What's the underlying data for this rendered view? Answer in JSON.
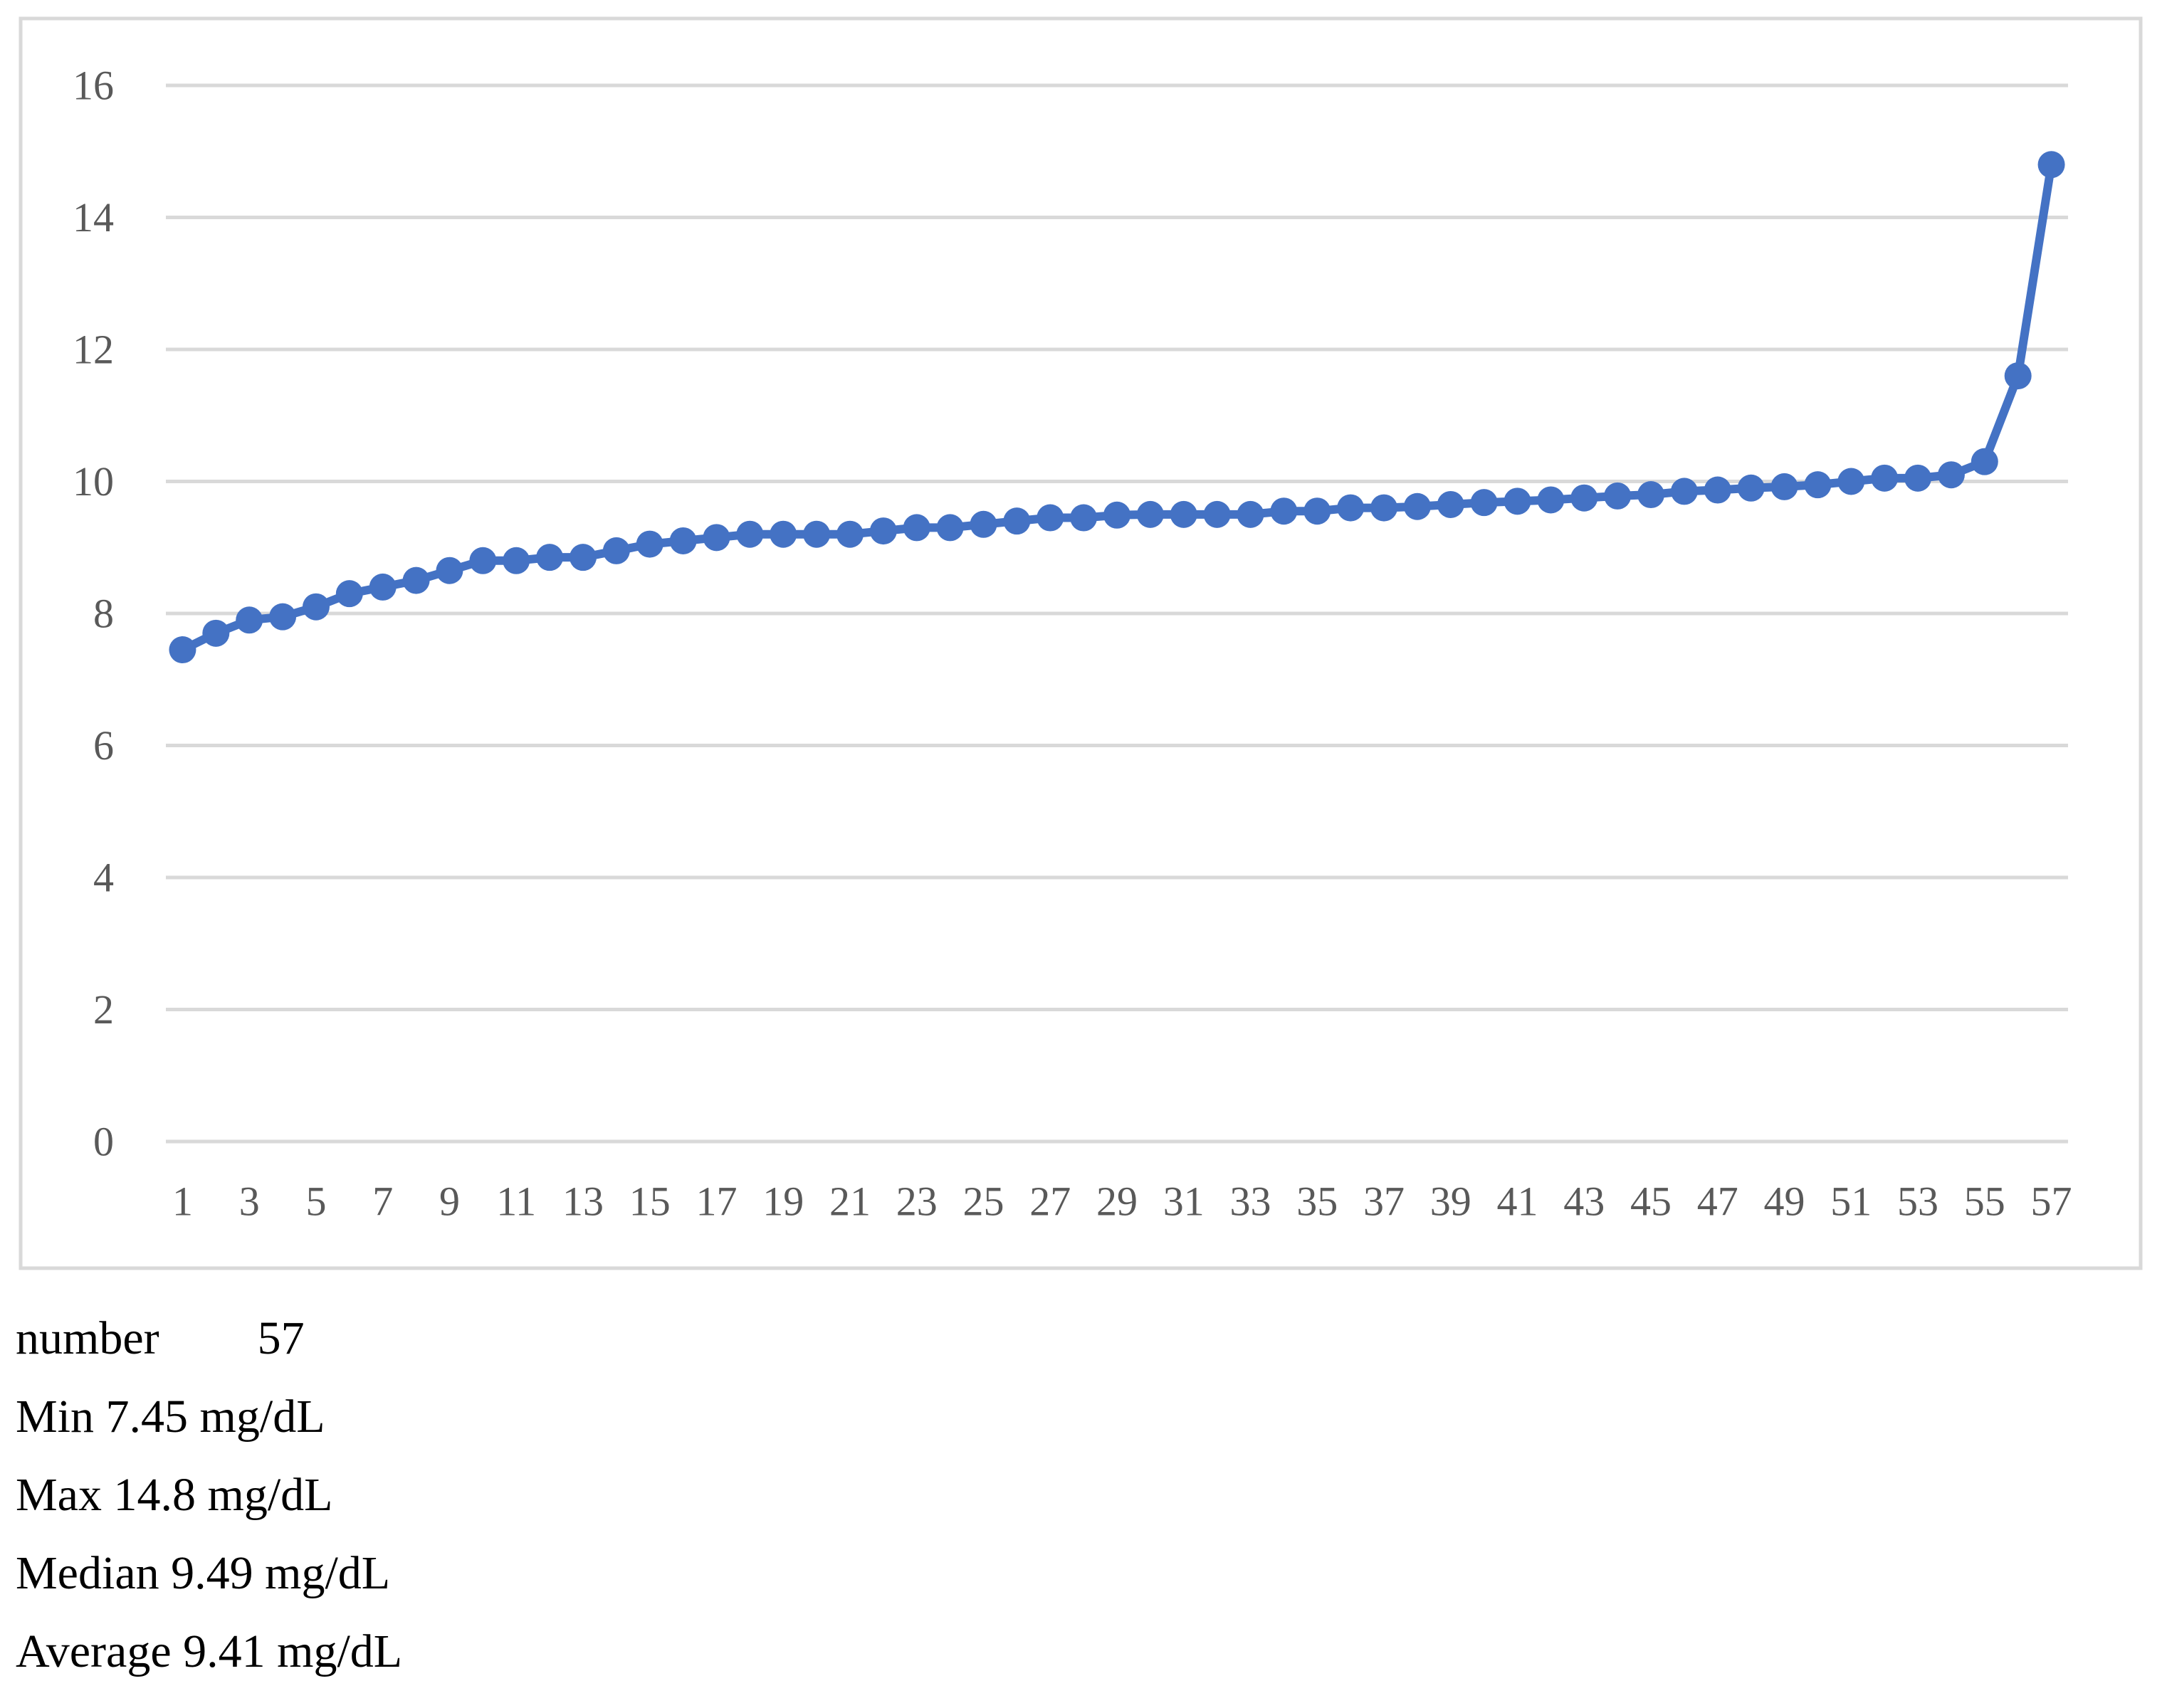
{
  "chart_data": {
    "type": "line",
    "title": "",
    "xlabel": "",
    "ylabel": "",
    "x": [
      1,
      2,
      3,
      4,
      5,
      6,
      7,
      8,
      9,
      10,
      11,
      12,
      13,
      14,
      15,
      16,
      17,
      18,
      19,
      20,
      21,
      22,
      23,
      24,
      25,
      26,
      27,
      28,
      29,
      30,
      31,
      32,
      33,
      34,
      35,
      36,
      37,
      38,
      39,
      40,
      41,
      42,
      43,
      44,
      45,
      46,
      47,
      48,
      49,
      50,
      51,
      52,
      53,
      54,
      55,
      56,
      57
    ],
    "values": [
      7.45,
      7.7,
      7.9,
      7.95,
      8.1,
      8.3,
      8.4,
      8.5,
      8.65,
      8.8,
      8.8,
      8.85,
      8.85,
      8.95,
      9.05,
      9.1,
      9.15,
      9.2,
      9.2,
      9.2,
      9.2,
      9.25,
      9.3,
      9.3,
      9.35,
      9.4,
      9.45,
      9.45,
      9.49,
      9.5,
      9.5,
      9.5,
      9.5,
      9.55,
      9.55,
      9.6,
      9.6,
      9.62,
      9.65,
      9.68,
      9.7,
      9.72,
      9.75,
      9.78,
      9.8,
      9.85,
      9.87,
      9.9,
      9.92,
      9.95,
      10.0,
      10.05,
      10.05,
      10.1,
      10.3,
      11.6,
      14.8
    ],
    "ylim": [
      0,
      16
    ],
    "yticks": [
      0,
      2,
      4,
      6,
      8,
      10,
      12,
      14,
      16
    ],
    "xticks": [
      1,
      3,
      5,
      7,
      9,
      11,
      13,
      15,
      17,
      19,
      21,
      23,
      25,
      27,
      29,
      31,
      33,
      35,
      37,
      39,
      41,
      43,
      45,
      47,
      49,
      51,
      53,
      55,
      57
    ],
    "grid": true,
    "legend_position": "none",
    "colors": {
      "series": "#4472C4",
      "gridline": "#D9D9D9",
      "frame": "#D9D9D9",
      "axis_labels": "#595959"
    }
  },
  "stats": {
    "number_label": "number",
    "number_value": "57",
    "lines": [
      "Min 7.45 mg/dL",
      "Max 14.8 mg/dL",
      "Median 9.49 mg/dL",
      "Average 9.41 mg/dL"
    ]
  }
}
